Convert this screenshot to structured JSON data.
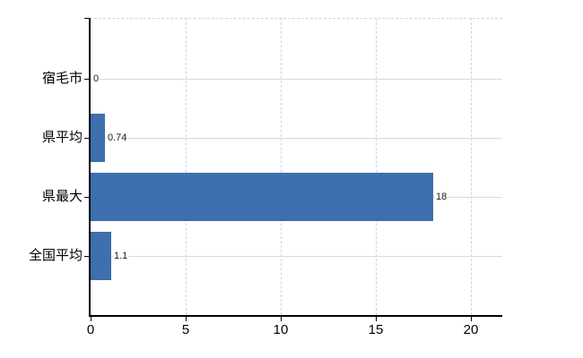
{
  "chart_data": {
    "type": "bar",
    "orientation": "horizontal",
    "title": "",
    "xlabel": "",
    "ylabel": "",
    "legend": "none",
    "categories": [
      "宿毛市",
      "県平均",
      "県最大",
      "全国平均"
    ],
    "values": [
      0,
      0.74,
      18,
      1.1
    ],
    "value_labels": [
      "0",
      "0.74",
      "18",
      "1.1"
    ],
    "x_ticks": [
      0,
      5,
      10,
      15,
      20
    ],
    "x_tick_labels": [
      "0",
      "5",
      "10",
      "15",
      "20"
    ],
    "xlim": [
      0,
      20
    ],
    "grid": {
      "vertical": "dashed",
      "horizontal": "solid-at-category-centers",
      "top_border": "dashed"
    },
    "colors": {
      "bar": "#3e6fae",
      "axis": "#000000",
      "h_gridline": "#d4ded4",
      "v_gridline": "#d5d1db",
      "category_text": "#000000",
      "value_text": "#1a1a1a",
      "background": "#ffffff"
    }
  }
}
